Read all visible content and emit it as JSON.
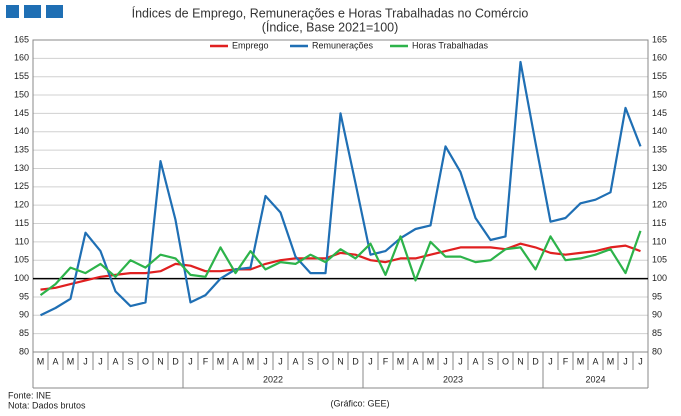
{
  "chart_data": {
    "type": "line",
    "title": "Índices de Emprego, Remunerações e Horas Trabalhadas no Comércio",
    "subtitle": "(Índice, Base 2021=100)",
    "categories": [
      "M",
      "A",
      "M",
      "J",
      "J",
      "A",
      "S",
      "O",
      "N",
      "D",
      "J",
      "F",
      "M",
      "A",
      "M",
      "J",
      "J",
      "A",
      "S",
      "O",
      "N",
      "D",
      "J",
      "F",
      "M",
      "A",
      "M",
      "J",
      "J",
      "A",
      "S",
      "O",
      "N",
      "D",
      "J",
      "F",
      "M",
      "A",
      "M",
      "J",
      "J"
    ],
    "x_groups": [
      {
        "label": null,
        "size": 10
      },
      {
        "label": "2022",
        "size": 12
      },
      {
        "label": "2023",
        "size": 12
      },
      {
        "label": "2024",
        "size": 7
      }
    ],
    "series": [
      {
        "name": "Emprego",
        "color": "#e02020",
        "values": [
          97,
          97.5,
          98.5,
          99.5,
          100.5,
          101,
          101.5,
          101.5,
          102,
          104,
          103.5,
          102,
          102,
          102.5,
          102.5,
          104,
          105,
          105.5,
          105.5,
          105.5,
          107,
          106.5,
          105,
          104.5,
          105.5,
          105.5,
          106.5,
          107.5,
          108.5,
          108.5,
          108.5,
          108,
          109.5,
          108.5,
          107,
          106.5,
          107,
          107.5,
          108.5,
          109,
          107.5
        ]
      },
      {
        "name": "Remunerações",
        "color": "#1f6fb4",
        "values": [
          90,
          92,
          94.5,
          112.5,
          107.5,
          96.5,
          92.5,
          93.5,
          132,
          116,
          93.5,
          95.5,
          100,
          102.5,
          103,
          122.5,
          118,
          106,
          101.5,
          101.5,
          145,
          126,
          106.5,
          107.5,
          111,
          113.5,
          114.5,
          136,
          129,
          116.5,
          110.5,
          111.5,
          159,
          137,
          115.5,
          116.5,
          120.5,
          121.5,
          123.5,
          146.5,
          136
        ]
      },
      {
        "name": "Horas Trabalhadas",
        "color": "#2db34a",
        "values": [
          95.5,
          98.5,
          103,
          101.5,
          104,
          100.5,
          105,
          103,
          106.5,
          105.5,
          101,
          100.5,
          108.5,
          101.5,
          107.5,
          102.5,
          104.5,
          104,
          106.5,
          104.5,
          108,
          105.5,
          109.5,
          101,
          111.5,
          99.5,
          110,
          106,
          106,
          104.5,
          105,
          108,
          108.5,
          102.5,
          111.5,
          105,
          105.5,
          106.5,
          108,
          101.5,
          113
        ]
      }
    ],
    "ylim": [
      80,
      165
    ],
    "yticks": [
      80,
      85,
      90,
      95,
      100,
      105,
      110,
      115,
      120,
      125,
      130,
      135,
      140,
      145,
      150,
      155,
      160,
      165
    ],
    "y2lim": [
      80,
      165
    ],
    "y2ticks": [
      80,
      85,
      90,
      95,
      100,
      105,
      110,
      115,
      120,
      125,
      130,
      135,
      140,
      145,
      150,
      155,
      160,
      165
    ],
    "reference_line": 100,
    "grid": true,
    "source": "Fonte: INE",
    "note": "Nota: Dados brutos",
    "credit": "(Gráfico: GEE)"
  }
}
